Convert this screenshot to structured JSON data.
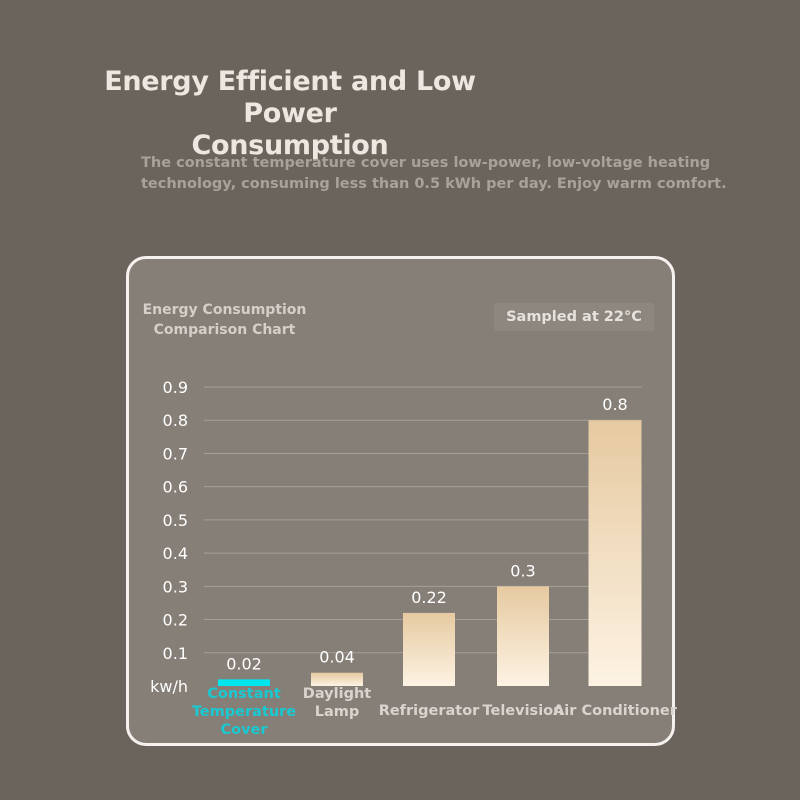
{
  "header": {
    "title_line1": "Energy Efficient and Low Power",
    "title_line2": "Consumption",
    "description": "The constant temperature cover uses low-power, low-voltage heating technology, consuming less than 0.5 kWh per day. Enjoy warm comfort."
  },
  "card": {
    "chart_title_line1": "Energy Consumption",
    "chart_title_line2": "Comparison Chart",
    "sample_note": "Sampled at 22°C"
  },
  "colors": {
    "background": "#6b645d",
    "card": "#857f78",
    "highlight_bar": "#00e6ee",
    "highlight_label": "#19c9d2",
    "bar_top": "#e6c9a0",
    "bar_bottom": "#fdf3e3",
    "category_label": "#d9d4cf"
  },
  "chart_data": {
    "type": "bar",
    "title": "Energy Consumption Comparison Chart",
    "ylabel": "kw/h",
    "xlabel": "",
    "categories": [
      [
        "Constant",
        "Temperature",
        "Cover"
      ],
      [
        "Daylight",
        "Lamp"
      ],
      [
        "Refrigerator"
      ],
      [
        "Television"
      ],
      [
        "Air Conditioner"
      ]
    ],
    "values": [
      0.02,
      0.04,
      0.22,
      0.3,
      0.8
    ],
    "value_labels": [
      "0.02",
      "0.04",
      "0.22",
      "0.3",
      "0.8"
    ],
    "highlight_index": 0,
    "ylim": [
      0,
      0.9
    ],
    "yticks": [
      "0.1",
      "0.2",
      "0.3",
      "0.4",
      "0.5",
      "0.6",
      "0.7",
      "0.8",
      "0.9"
    ],
    "grid": true,
    "legend": "none"
  }
}
